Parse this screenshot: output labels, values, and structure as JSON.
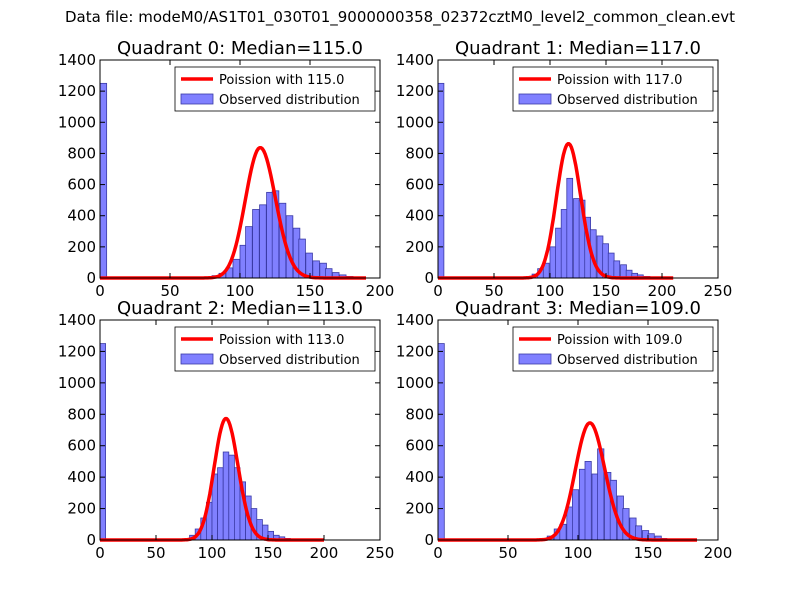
{
  "figure_title": "Data file: modeM0/AS1T01_030T01_9000000358_02372cztM0_level2_common_clean.evt",
  "colors": {
    "bar_fill": "#8080ff",
    "bar_edge": "#3a3aa6",
    "poisson_line": "#ff0000"
  },
  "chart_data": [
    {
      "type": "bar",
      "title": "Quadrant 0: Median=115.0",
      "xlabel": "",
      "ylabel": "",
      "xlim": [
        0,
        200
      ],
      "ylim": [
        0,
        1400
      ],
      "xticks": [
        0,
        50,
        100,
        150,
        200
      ],
      "yticks": [
        0,
        200,
        400,
        600,
        800,
        1000,
        1200,
        1400
      ],
      "legend_position": "top-right",
      "series": [
        {
          "name": "Poission with 115.0",
          "kind": "line",
          "mean": 115.0,
          "x_range": [
            0,
            190
          ]
        },
        {
          "name": "Observed distribution",
          "kind": "histogram",
          "bin_width": 4.75,
          "bins": [
            [
              0,
              1250
            ],
            [
              76,
              5
            ],
            [
              80,
              15
            ],
            [
              85,
              30
            ],
            [
              90,
              65
            ],
            [
              95,
              120
            ],
            [
              100,
              210
            ],
            [
              104,
              330
            ],
            [
              109,
              440
            ],
            [
              114,
              470
            ],
            [
              119,
              550
            ],
            [
              123,
              560
            ],
            [
              128,
              480
            ],
            [
              133,
              400
            ],
            [
              138,
              320
            ],
            [
              142,
              250
            ],
            [
              147,
              160
            ],
            [
              152,
              110
            ],
            [
              157,
              95
            ],
            [
              161,
              60
            ],
            [
              166,
              35
            ],
            [
              171,
              20
            ],
            [
              176,
              10
            ],
            [
              180,
              5
            ]
          ]
        }
      ]
    },
    {
      "type": "bar",
      "title": "Quadrant 1: Median=117.0",
      "xlabel": "",
      "ylabel": "",
      "xlim": [
        0,
        250
      ],
      "ylim": [
        0,
        1400
      ],
      "xticks": [
        0,
        50,
        100,
        150,
        200,
        250
      ],
      "yticks": [
        0,
        200,
        400,
        600,
        800,
        1000,
        1200,
        1400
      ],
      "legend_position": "top-right",
      "series": [
        {
          "name": "Poission with 117.0",
          "kind": "line",
          "mean": 117.0,
          "x_range": [
            0,
            210
          ]
        },
        {
          "name": "Observed distribution",
          "kind": "histogram",
          "bin_width": 5.25,
          "bins": [
            [
              0,
              1250
            ],
            [
              79,
              5
            ],
            [
              84,
              25
            ],
            [
              89,
              60
            ],
            [
              94,
              95
            ],
            [
              100,
              200
            ],
            [
              105,
              320
            ],
            [
              110,
              440
            ],
            [
              115,
              640
            ],
            [
              121,
              510
            ],
            [
              126,
              500
            ],
            [
              131,
              390
            ],
            [
              136,
              310
            ],
            [
              142,
              270
            ],
            [
              147,
              220
            ],
            [
              152,
              160
            ],
            [
              157,
              110
            ],
            [
              163,
              85
            ],
            [
              168,
              50
            ],
            [
              173,
              30
            ],
            [
              178,
              20
            ],
            [
              184,
              10
            ],
            [
              189,
              5
            ]
          ]
        }
      ]
    },
    {
      "type": "bar",
      "title": "Quadrant 2: Median=113.0",
      "xlabel": "",
      "ylabel": "",
      "xlim": [
        0,
        250
      ],
      "ylim": [
        0,
        1400
      ],
      "xticks": [
        0,
        50,
        100,
        150,
        200,
        250
      ],
      "yticks": [
        0,
        200,
        400,
        600,
        800,
        1000,
        1200,
        1400
      ],
      "legend_position": "top-right",
      "series": [
        {
          "name": "Poission with 113.0",
          "kind": "line",
          "mean": 113.0,
          "x_range": [
            0,
            200
          ]
        },
        {
          "name": "Observed distribution",
          "kind": "histogram",
          "bin_width": 5.0,
          "bins": [
            [
              0,
              1250
            ],
            [
              75,
              5
            ],
            [
              80,
              30
            ],
            [
              85,
              70
            ],
            [
              90,
              140
            ],
            [
              95,
              240
            ],
            [
              100,
              420
            ],
            [
              105,
              460
            ],
            [
              110,
              560
            ],
            [
              115,
              540
            ],
            [
              120,
              460
            ],
            [
              125,
              370
            ],
            [
              130,
              280
            ],
            [
              135,
              200
            ],
            [
              140,
              130
            ],
            [
              145,
              95
            ],
            [
              150,
              55
            ],
            [
              155,
              30
            ],
            [
              160,
              20
            ],
            [
              165,
              10
            ],
            [
              170,
              5
            ]
          ]
        }
      ]
    },
    {
      "type": "bar",
      "title": "Quadrant 3: Median=109.0",
      "xlabel": "",
      "ylabel": "",
      "xlim": [
        0,
        200
      ],
      "ylim": [
        0,
        1400
      ],
      "xticks": [
        0,
        50,
        100,
        150,
        200
      ],
      "yticks": [
        0,
        200,
        400,
        600,
        800,
        1000,
        1200,
        1400
      ],
      "legend_position": "top-right",
      "series": [
        {
          "name": "Poission with 109.0",
          "kind": "line",
          "mean": 109.0,
          "x_range": [
            0,
            185
          ]
        },
        {
          "name": "Observed distribution",
          "kind": "histogram",
          "bin_width": 4.5,
          "bins": [
            [
              0,
              1250
            ],
            [
              74,
              5
            ],
            [
              78,
              25
            ],
            [
              83,
              70
            ],
            [
              87,
              100
            ],
            [
              92,
              210
            ],
            [
              96,
              320
            ],
            [
              101,
              450
            ],
            [
              105,
              500
            ],
            [
              110,
              420
            ],
            [
              114,
              580
            ],
            [
              119,
              430
            ],
            [
              123,
              380
            ],
            [
              128,
              280
            ],
            [
              132,
              200
            ],
            [
              137,
              140
            ],
            [
              141,
              90
            ],
            [
              146,
              60
            ],
            [
              150,
              40
            ],
            [
              155,
              25
            ],
            [
              159,
              10
            ]
          ]
        }
      ]
    }
  ]
}
